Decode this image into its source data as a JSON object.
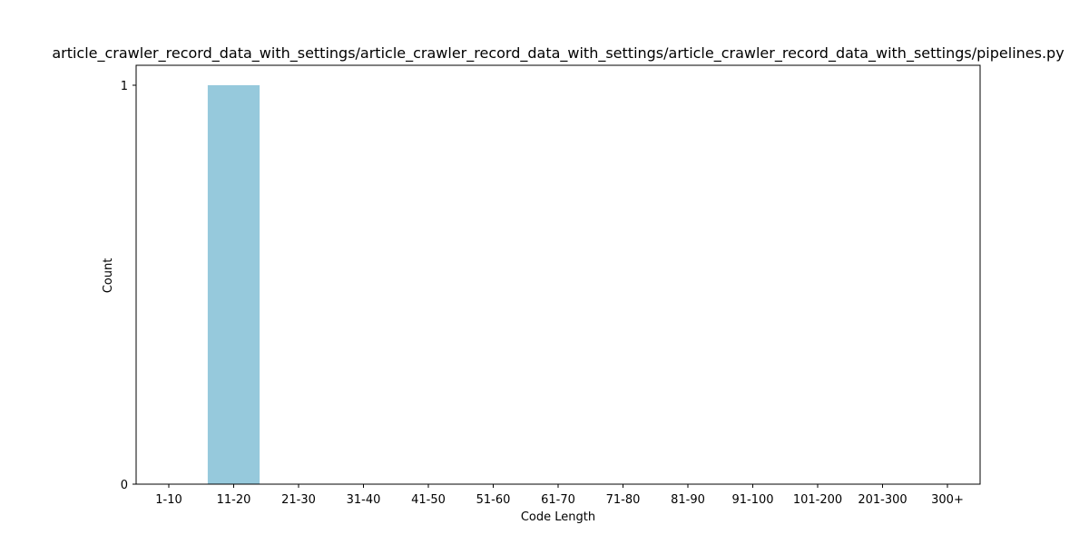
{
  "chart_data": {
    "type": "bar",
    "title": "article_crawler_record_data_with_settings/article_crawler_record_data_with_settings/article_crawler_record_data_with_settings/pipelines.py",
    "xlabel": "Code Length",
    "ylabel": "Count",
    "categories": [
      "1-10",
      "11-20",
      "21-30",
      "31-40",
      "41-50",
      "51-60",
      "61-70",
      "71-80",
      "81-90",
      "91-100",
      "101-200",
      "201-300",
      "300+"
    ],
    "values": [
      0,
      1,
      0,
      0,
      0,
      0,
      0,
      0,
      0,
      0,
      0,
      0,
      0
    ],
    "ylim": [
      0,
      1
    ],
    "yticks": [
      0,
      1
    ],
    "grid": false,
    "bar_color": "#96c9dc"
  }
}
